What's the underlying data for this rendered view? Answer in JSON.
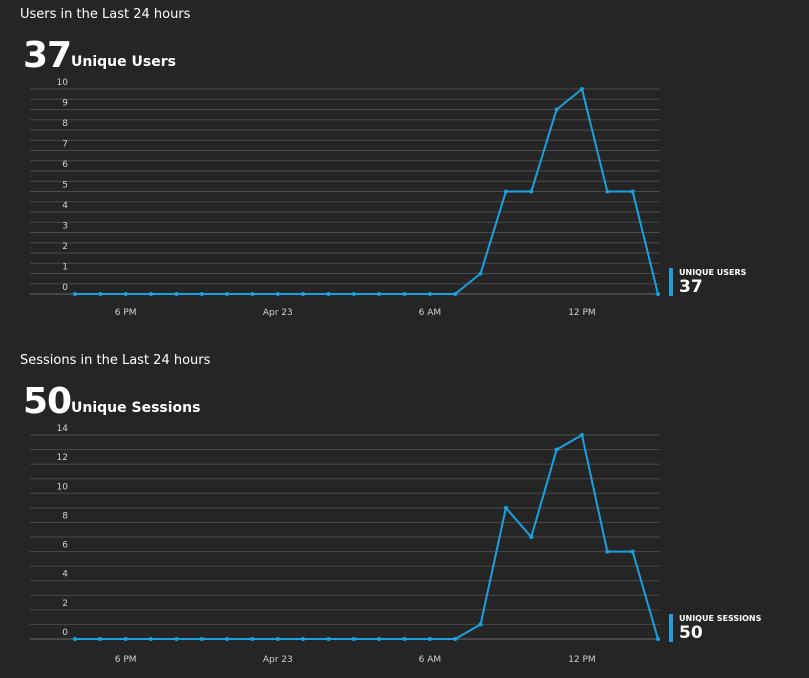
{
  "users": {
    "title": "Users in the Last 24 hours",
    "big_number": "37",
    "big_label": "Unique Users",
    "legend_label": "UNIQUE USERS",
    "legend_value": "37"
  },
  "sessions": {
    "title": "Sessions in the Last 24 hours",
    "big_number": "50",
    "big_label": "Unique Sessions",
    "legend_label": "UNIQUE SESSIONS",
    "legend_value": "50"
  },
  "colors": {
    "line": "#1ba1e2",
    "grid": "#4a4a4a",
    "background": "#252525"
  },
  "chart_data": [
    {
      "type": "line",
      "title": "Users in the Last 24 hours",
      "x_tick_labels": [
        "6 PM",
        "Apr 23",
        "6 AM",
        "12 PM"
      ],
      "x_tick_index": [
        2,
        8,
        14,
        20
      ],
      "y": [
        0,
        0,
        0,
        0,
        0,
        0,
        0,
        0,
        0,
        0,
        0,
        0,
        0,
        0,
        0,
        0,
        1,
        5,
        5,
        9,
        10,
        5,
        5,
        0
      ],
      "ylim": [
        0,
        10
      ],
      "y_ticks": [
        0,
        1,
        2,
        3,
        4,
        5,
        6,
        7,
        8,
        9,
        10
      ],
      "series": [
        {
          "name": "UNIQUE USERS"
        }
      ],
      "grid": true,
      "legend": "right"
    },
    {
      "type": "line",
      "title": "Sessions in the Last 24 hours",
      "x_tick_labels": [
        "6 PM",
        "Apr 23",
        "6 AM",
        "12 PM"
      ],
      "x_tick_index": [
        2,
        8,
        14,
        20
      ],
      "y": [
        0,
        0,
        0,
        0,
        0,
        0,
        0,
        0,
        0,
        0,
        0,
        0,
        0,
        0,
        0,
        0,
        1,
        9,
        7,
        13,
        14,
        6,
        6,
        0
      ],
      "ylim": [
        0,
        14
      ],
      "y_ticks": [
        0,
        2,
        4,
        6,
        8,
        10,
        12,
        14
      ],
      "series": [
        {
          "name": "UNIQUE SESSIONS"
        }
      ],
      "grid": true,
      "legend": "right"
    }
  ]
}
